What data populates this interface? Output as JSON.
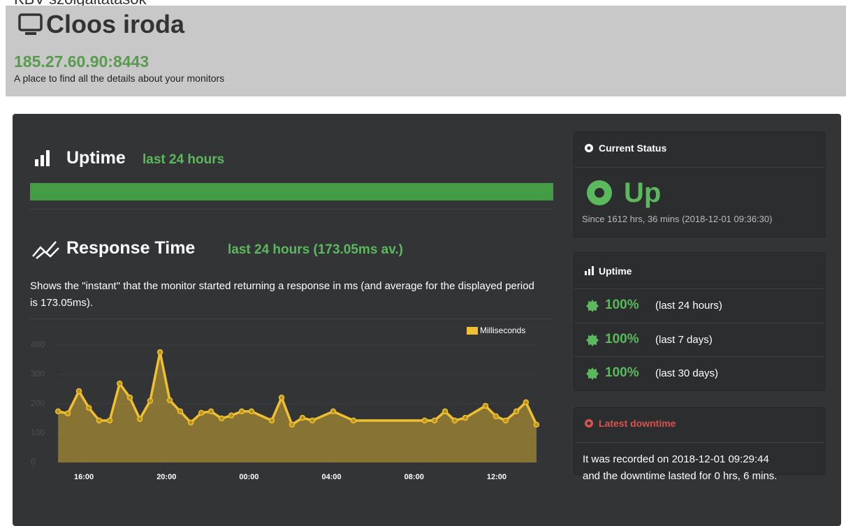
{
  "header": {
    "top": "KBV szolgáltatások",
    "title": "Cloos iroda",
    "address": "185.27.60.90:8443",
    "description": "A place to find all the details about your monitors"
  },
  "uptime": {
    "title": "Uptime",
    "period": "last 24 hours"
  },
  "response": {
    "title": "Response Time",
    "period": "last 24 hours (173.05ms av.)",
    "description": "Shows the \"instant\" that the monitor started returning a response in ms (and average for the displayed period is 173.05ms)."
  },
  "chart_data": {
    "type": "line",
    "x": [
      14.75,
      15.22,
      15.76,
      16.24,
      16.74,
      17.25,
      17.73,
      18.23,
      18.71,
      19.21,
      19.69,
      20.16,
      20.67,
      21.18,
      21.69,
      22.16,
      22.67,
      23.14,
      23.65,
      24.12,
      25.1,
      25.58,
      26.08,
      26.59,
      27.07,
      28.08,
      29.06,
      32.51,
      32.99,
      33.5,
      33.97,
      34.48,
      35.46,
      35.97,
      36.44,
      36.95,
      37.42,
      37.93
    ],
    "series": [
      {
        "name": "Milliseconds",
        "color": "#f0c030",
        "values": [
          174,
          167,
          243,
          186,
          143,
          143,
          269,
          221,
          148,
          210,
          376,
          212,
          174,
          136,
          169,
          174,
          150,
          160,
          174,
          174,
          143,
          221,
          129,
          152,
          143,
          174,
          143,
          143,
          143,
          174,
          143,
          152,
          193,
          157,
          143,
          174,
          205,
          129
        ]
      }
    ],
    "xlim": [
      14.71,
      38.0
    ],
    "xticks": [
      {
        "value": 16,
        "label": "16:00"
      },
      {
        "value": 20,
        "label": "20:00"
      },
      {
        "value": 24,
        "label": "00:00"
      },
      {
        "value": 28,
        "label": "04:00"
      },
      {
        "value": 32,
        "label": "08:00"
      },
      {
        "value": 36,
        "label": "12:00"
      }
    ],
    "ylim": [
      0,
      400
    ],
    "yticks": [
      0,
      100,
      200,
      300,
      400
    ],
    "grid": true,
    "legend": "top-right"
  },
  "status": {
    "heading": "Current Status",
    "state": "Up",
    "since": "Since 1612 hrs, 36 mins (2018-12-01 09:36:30)"
  },
  "uptime_panel": {
    "heading": "Uptime",
    "rows": [
      {
        "value": "100%",
        "period": "(last 24 hours)"
      },
      {
        "value": "100%",
        "period": "(last 7 days)"
      },
      {
        "value": "100%",
        "period": "(last 30 days)"
      }
    ]
  },
  "downtime": {
    "heading": "Latest downtime",
    "lines": [
      "It was recorded on 2018-12-01 09:29:44",
      "and the downtime lasted for 0 hrs, 6 mins."
    ]
  }
}
